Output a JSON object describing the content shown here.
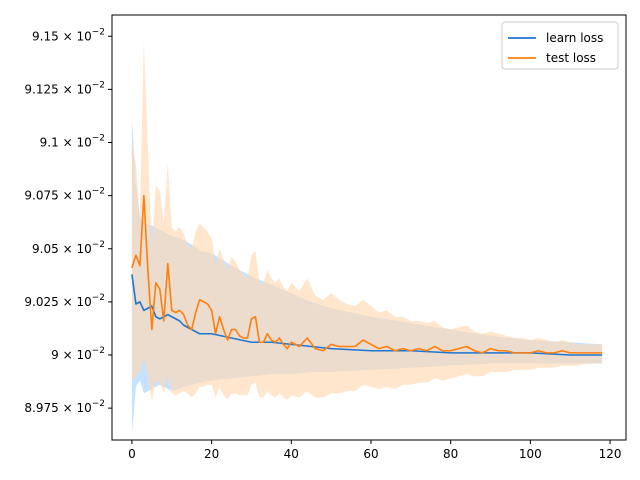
{
  "chart_data": {
    "type": "line",
    "title": "",
    "xlabel": "",
    "ylabel": "",
    "xlim": [
      -5,
      124
    ],
    "ylim": [
      8.96,
      9.16
    ],
    "y_tick_exponent": "−2",
    "x_ticks": [
      0,
      20,
      40,
      60,
      80,
      100,
      120
    ],
    "x_tick_labels": [
      "0",
      "20",
      "40",
      "60",
      "80",
      "100",
      "120"
    ],
    "y_ticks": [
      8.975,
      9.0,
      9.025,
      9.05,
      9.075,
      9.1,
      9.125,
      9.15
    ],
    "y_tick_mantissas": [
      "8.975",
      "9",
      "9.025",
      "9.05",
      "9.075",
      "9.1",
      "9.125",
      "9.15"
    ],
    "grid": false,
    "legend_position": "top-right",
    "series": [
      {
        "name": "learn loss",
        "color": "#1f77d4",
        "band_color": "#a6d2ff",
        "x": [
          0,
          1,
          2,
          3,
          5,
          6,
          7,
          8,
          9,
          10,
          12,
          13,
          15,
          17,
          20,
          25,
          30,
          35,
          40,
          45,
          50,
          60,
          70,
          80,
          90,
          100,
          110,
          118
        ],
        "y": [
          9.038,
          9.024,
          9.025,
          9.021,
          9.023,
          9.018,
          9.017,
          9.018,
          9.019,
          9.018,
          9.016,
          9.014,
          9.012,
          9.01,
          9.01,
          9.008,
          9.006,
          9.006,
          9.005,
          9.004,
          9.003,
          9.002,
          9.002,
          9.001,
          9.001,
          9.001,
          9.0,
          9.0
        ],
        "upper": [
          9.111,
          9.08,
          9.065,
          9.062,
          9.061,
          9.06,
          9.059,
          9.058,
          9.057,
          9.056,
          9.055,
          9.054,
          9.052,
          9.049,
          9.048,
          9.042,
          9.037,
          9.033,
          9.029,
          9.025,
          9.022,
          9.018,
          9.015,
          9.012,
          9.009,
          9.007,
          9.006,
          9.005
        ],
        "lower": [
          8.963,
          8.985,
          8.988,
          8.982,
          8.984,
          8.985,
          8.986,
          8.985,
          8.984,
          8.983,
          8.984,
          8.985,
          8.986,
          8.987,
          8.988,
          8.989,
          8.99,
          8.991,
          8.991,
          8.992,
          8.992,
          8.993,
          8.994,
          8.995,
          8.996,
          8.996,
          8.996,
          8.996
        ]
      },
      {
        "name": "test loss",
        "color": "#ff7f0e",
        "band_color": "#ffd8b2",
        "x": [
          0,
          1,
          2,
          3,
          4,
          5,
          6,
          7,
          8,
          9,
          10,
          11,
          12,
          13,
          14,
          15,
          16,
          17,
          18,
          19,
          20,
          21,
          22,
          23,
          24,
          25,
          26,
          27,
          28,
          29,
          30,
          31,
          32,
          33,
          34,
          35,
          36,
          37,
          38,
          39,
          40,
          42,
          44,
          46,
          48,
          50,
          52,
          54,
          56,
          58,
          60,
          62,
          64,
          66,
          68,
          70,
          72,
          74,
          76,
          78,
          80,
          82,
          84,
          86,
          88,
          90,
          92,
          94,
          96,
          98,
          100,
          102,
          104,
          106,
          108,
          110,
          112,
          114,
          116,
          118
        ],
        "y": [
          9.041,
          9.047,
          9.042,
          9.075,
          9.04,
          9.012,
          9.034,
          9.031,
          9.016,
          9.043,
          9.021,
          9.02,
          9.021,
          9.019,
          9.014,
          9.012,
          9.02,
          9.026,
          9.025,
          9.024,
          9.021,
          9.01,
          9.018,
          9.012,
          9.007,
          9.012,
          9.012,
          9.009,
          9.008,
          9.008,
          9.017,
          9.018,
          9.006,
          9.006,
          9.01,
          9.007,
          9.006,
          9.008,
          9.005,
          9.003,
          9.006,
          9.004,
          9.008,
          9.003,
          9.002,
          9.005,
          9.004,
          9.004,
          9.004,
          9.007,
          9.005,
          9.003,
          9.004,
          9.002,
          9.003,
          9.002,
          9.003,
          9.002,
          9.004,
          9.002,
          9.002,
          9.003,
          9.004,
          9.002,
          9.001,
          9.003,
          9.002,
          9.002,
          9.001,
          9.001,
          9.001,
          9.002,
          9.001,
          9.001,
          9.002,
          9.001,
          9.001,
          9.001,
          9.001,
          9.001
        ],
        "upper": [
          9.1,
          9.09,
          9.065,
          9.148,
          9.098,
          9.05,
          9.08,
          9.077,
          9.062,
          9.09,
          9.06,
          9.058,
          9.06,
          9.057,
          9.052,
          9.05,
          9.058,
          9.062,
          9.06,
          9.058,
          9.055,
          9.042,
          9.05,
          9.045,
          9.04,
          9.046,
          9.044,
          9.04,
          9.038,
          9.036,
          9.047,
          9.049,
          9.034,
          9.034,
          9.04,
          9.036,
          9.034,
          9.036,
          9.032,
          9.03,
          9.034,
          9.03,
          9.036,
          9.028,
          9.026,
          9.029,
          9.026,
          9.024,
          9.023,
          9.026,
          9.023,
          9.02,
          9.021,
          9.018,
          9.018,
          9.016,
          9.016,
          9.015,
          9.016,
          9.013,
          9.012,
          9.013,
          9.014,
          9.011,
          9.01,
          9.011,
          9.01,
          9.009,
          9.008,
          9.008,
          9.007,
          9.008,
          9.007,
          9.006,
          9.007,
          9.006,
          9.005,
          9.005,
          9.005,
          9.005
        ],
        "lower": [
          8.988,
          8.99,
          8.992,
          8.998,
          8.99,
          8.978,
          8.988,
          8.987,
          8.982,
          8.99,
          8.982,
          8.981,
          8.982,
          8.983,
          8.982,
          8.98,
          8.982,
          8.985,
          8.985,
          8.986,
          8.986,
          8.98,
          8.985,
          8.981,
          8.979,
          8.982,
          8.982,
          8.981,
          8.981,
          8.981,
          8.986,
          8.987,
          8.98,
          8.98,
          8.983,
          8.981,
          8.98,
          8.982,
          8.98,
          8.979,
          8.981,
          8.98,
          8.983,
          8.98,
          8.98,
          8.982,
          8.982,
          8.983,
          8.983,
          8.986,
          8.985,
          8.984,
          8.985,
          8.984,
          8.986,
          8.986,
          8.987,
          8.987,
          8.989,
          8.988,
          8.989,
          8.99,
          8.991,
          8.99,
          8.99,
          8.992,
          8.992,
          8.992,
          8.993,
          8.993,
          8.993,
          8.994,
          8.994,
          8.994,
          8.995,
          8.995,
          8.995,
          8.996,
          8.996,
          8.996
        ]
      }
    ]
  }
}
